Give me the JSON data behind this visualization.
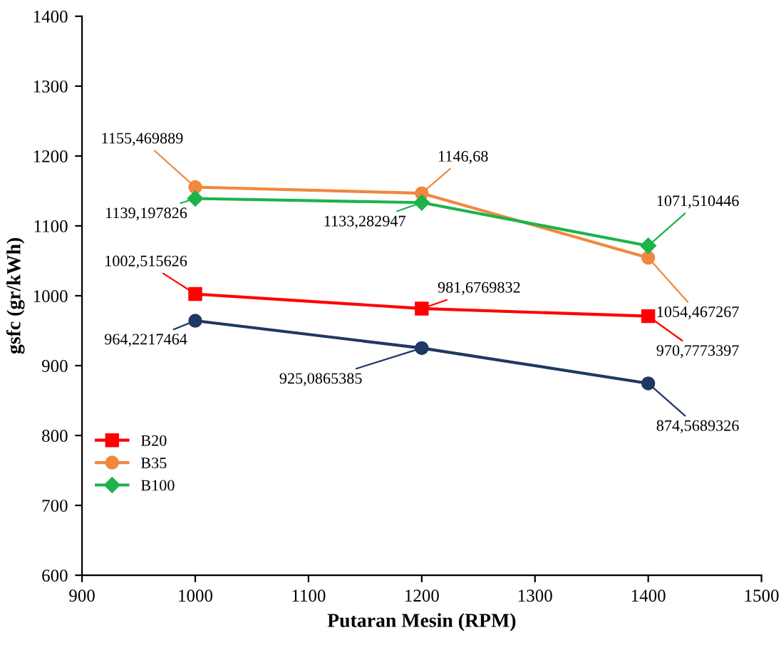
{
  "chart_data": {
    "type": "line",
    "xlabel": "Putaran Mesin (RPM)",
    "ylabel": "gsfc (gr/kWh)",
    "x": [
      1000,
      1200,
      1400
    ],
    "xlim": [
      900,
      1500
    ],
    "xticks": [
      900,
      1000,
      1100,
      1200,
      1300,
      1400,
      1500
    ],
    "ylim": [
      600,
      1400
    ],
    "yticks": [
      600,
      700,
      800,
      900,
      1000,
      1100,
      1200,
      1300,
      1400
    ],
    "grid": false,
    "legend": "bottom left",
    "line_style": "solid",
    "series": [
      {
        "name": "B20",
        "color": "#ff0000",
        "marker": "square",
        "values": [
          1002.515626,
          981.6769832,
          970.7773397
        ],
        "value_labels": [
          "1002,515626",
          "981,6769832",
          "970,7773397"
        ]
      },
      {
        "name": "B35",
        "color": "#f0883e",
        "marker": "circle",
        "values": [
          1155.469889,
          1146.68,
          1054.467267
        ],
        "value_labels": [
          "1155,469889",
          "1146,68",
          "1054,467267"
        ]
      },
      {
        "name": "B100",
        "color": "#1db34a",
        "marker": "diamond",
        "values": [
          1139.197826,
          1133.282947,
          1071.510446
        ],
        "value_labels": [
          "1139,197826",
          "1133,282947",
          "1071,510446"
        ]
      },
      {
        "color": "#1f3864",
        "marker": "circle",
        "values": [
          964.2217464,
          925.0865385,
          874.5689326
        ],
        "value_labels": [
          "964,2217464",
          "925,0865385",
          "874,5689326"
        ]
      }
    ]
  }
}
